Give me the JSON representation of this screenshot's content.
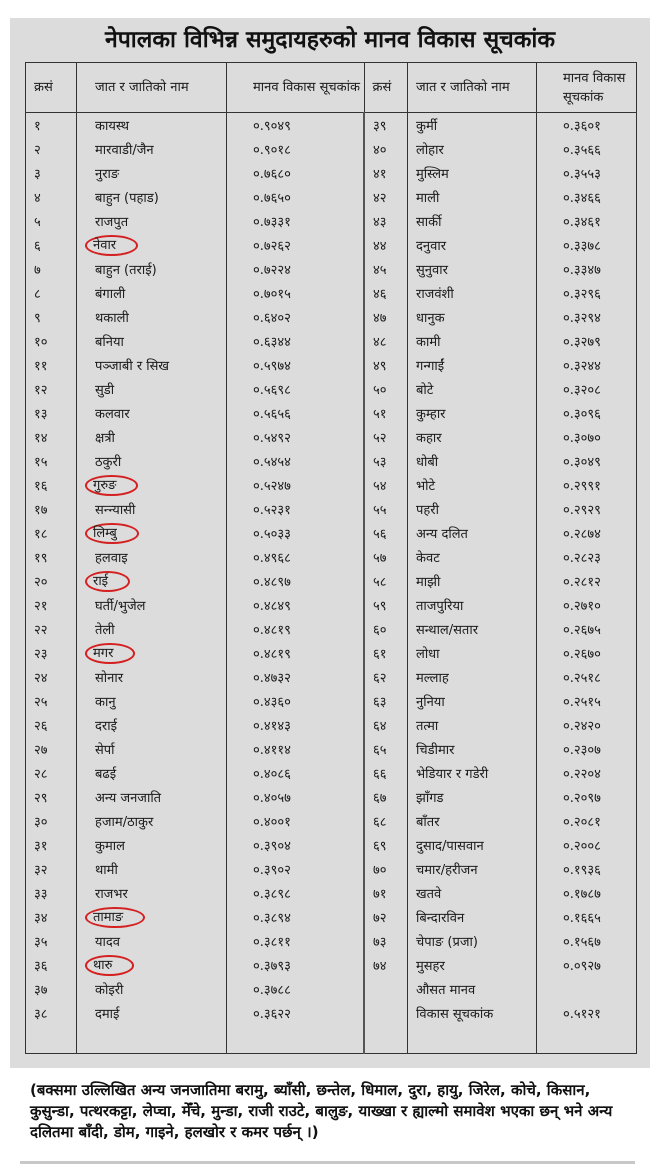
{
  "title": "नेपालका विभिन्न समुदायहरुको मानव विकास सूचकांक",
  "headers": {
    "sn": "क्रसं",
    "name": "जात र जातिको नाम",
    "hdi": "मानव विकास सूचकांक"
  },
  "highlight_color": "#d42020",
  "left_rows": [
    {
      "sn": "१",
      "name": "कायस्थ",
      "hdi": "०.९०४९"
    },
    {
      "sn": "२",
      "name": "मारवाडी/जैन",
      "hdi": "०.९०१८"
    },
    {
      "sn": "३",
      "name": "नुराङ",
      "hdi": "०.७६८०"
    },
    {
      "sn": "४",
      "name": "बाहुन (पहाड)",
      "hdi": "०.७६५०"
    },
    {
      "sn": "५",
      "name": "राजपुत",
      "hdi": "०.७३३१"
    },
    {
      "sn": "६",
      "name": "नेवार",
      "hdi": "०.७२६२",
      "circled": true
    },
    {
      "sn": "७",
      "name": "बाहुन (तराई)",
      "hdi": "०.७२२४"
    },
    {
      "sn": "८",
      "name": "बंगाली",
      "hdi": "०.७०१५"
    },
    {
      "sn": "९",
      "name": "थकाली",
      "hdi": "०.६४०२"
    },
    {
      "sn": "१०",
      "name": "बनिया",
      "hdi": "०.६३४४"
    },
    {
      "sn": "११",
      "name": "पञ्जाबी र सिख",
      "hdi": "०.५९७४"
    },
    {
      "sn": "१२",
      "name": "सुडी",
      "hdi": "०.५६९८"
    },
    {
      "sn": "१३",
      "name": "कलवार",
      "hdi": "०.५६५६"
    },
    {
      "sn": "१४",
      "name": "क्षत्री",
      "hdi": "०.५४९२"
    },
    {
      "sn": "१५",
      "name": "ठकुरी",
      "hdi": "०.५४५४"
    },
    {
      "sn": "१६",
      "name": "गुरुङ",
      "hdi": "०.५२४७",
      "circled": true
    },
    {
      "sn": "१७",
      "name": "सन्न्यासी",
      "hdi": "०.५२३१"
    },
    {
      "sn": "१८",
      "name": "लिम्बु",
      "hdi": "०.५०३३",
      "circled": true
    },
    {
      "sn": "१९",
      "name": "हलवाइ",
      "hdi": "०.४९६८"
    },
    {
      "sn": "२०",
      "name": "राई",
      "hdi": "०.४८९७",
      "circled": true
    },
    {
      "sn": "२१",
      "name": "घर्ती/भुजेल",
      "hdi": "०.४८४९"
    },
    {
      "sn": "२२",
      "name": "तेली",
      "hdi": "०.४८१९"
    },
    {
      "sn": "२३",
      "name": "मगर",
      "hdi": "०.४८१९",
      "circled": true
    },
    {
      "sn": "२४",
      "name": "सोनार",
      "hdi": "०.४७३२"
    },
    {
      "sn": "२५",
      "name": "कानु",
      "hdi": "०.४३६०"
    },
    {
      "sn": "२६",
      "name": "दराई",
      "hdi": "०.४१४३"
    },
    {
      "sn": "२७",
      "name": "सेर्पा",
      "hdi": "०.४११४"
    },
    {
      "sn": "२८",
      "name": "बढई",
      "hdi": "०.४०८६"
    },
    {
      "sn": "२९",
      "name": "अन्य जनजाति",
      "hdi": "०.४०५७"
    },
    {
      "sn": "३०",
      "name": "हजाम/ठाकुर",
      "hdi": "०.४००१"
    },
    {
      "sn": "३१",
      "name": "कुमाल",
      "hdi": "०.३९०४"
    },
    {
      "sn": "३२",
      "name": "थामी",
      "hdi": "०.३९०२"
    },
    {
      "sn": "३३",
      "name": "राजभर",
      "hdi": "०.३८९८"
    },
    {
      "sn": "३४",
      "name": "तामाङ",
      "hdi": "०.३८९४",
      "circled": true
    },
    {
      "sn": "३५",
      "name": "यादव",
      "hdi": "०.३८११"
    },
    {
      "sn": "३६",
      "name": "थारु",
      "hdi": "०.३७९३",
      "circled": true
    },
    {
      "sn": "३७",
      "name": "कोइरी",
      "hdi": "०.३७८८"
    },
    {
      "sn": "३८",
      "name": "दमाई",
      "hdi": "०.३६२२"
    }
  ],
  "right_rows": [
    {
      "sn": "३९",
      "name": "कुर्मी",
      "hdi": "०.३६०१"
    },
    {
      "sn": "४०",
      "name": "लोहार",
      "hdi": "०.३५६६"
    },
    {
      "sn": "४१",
      "name": "मुस्लिम",
      "hdi": "०.३५५३"
    },
    {
      "sn": "४२",
      "name": "माली",
      "hdi": "०.३४६६"
    },
    {
      "sn": "४३",
      "name": "सार्की",
      "hdi": "०.३४६१"
    },
    {
      "sn": "४४",
      "name": "दनुवार",
      "hdi": "०.३३७८"
    },
    {
      "sn": "४५",
      "name": "सुनुवार",
      "hdi": "०.३३४७"
    },
    {
      "sn": "४६",
      "name": "राजवंशी",
      "hdi": "०.३२९६"
    },
    {
      "sn": "४७",
      "name": "धानुक",
      "hdi": "०.३२९४"
    },
    {
      "sn": "४८",
      "name": "कामी",
      "hdi": "०.३२७९"
    },
    {
      "sn": "४९",
      "name": "गन्गाईं",
      "hdi": "०.३२४४"
    },
    {
      "sn": "५०",
      "name": "बोटे",
      "hdi": "०.३२०८"
    },
    {
      "sn": "५१",
      "name": "कुम्हार",
      "hdi": "०.३०९६"
    },
    {
      "sn": "५२",
      "name": "कहार",
      "hdi": "०.३०७०"
    },
    {
      "sn": "५३",
      "name": "धोबी",
      "hdi": "०.३०४९"
    },
    {
      "sn": "५४",
      "name": "भोटे",
      "hdi": "०.२९९१"
    },
    {
      "sn": "५५",
      "name": "पहरी",
      "hdi": "०.२९२९"
    },
    {
      "sn": "५६",
      "name": "अन्य दलित",
      "hdi": "०.२८७४"
    },
    {
      "sn": "५७",
      "name": "केवट",
      "hdi": "०.२८२३"
    },
    {
      "sn": "५८",
      "name": "माझी",
      "hdi": "०.२८१२"
    },
    {
      "sn": "५९",
      "name": "ताजपुरिया",
      "hdi": "०.२७१०"
    },
    {
      "sn": "६०",
      "name": "सन्थाल/सतार",
      "hdi": "०.२६७५"
    },
    {
      "sn": "६१",
      "name": "लोधा",
      "hdi": "०.२६७०"
    },
    {
      "sn": "६२",
      "name": "मल्लाह",
      "hdi": "०.२५१८"
    },
    {
      "sn": "६३",
      "name": "नुनिया",
      "hdi": "०.२५१५"
    },
    {
      "sn": "६४",
      "name": "तत्मा",
      "hdi": "०.२४२०"
    },
    {
      "sn": "६५",
      "name": "चिडीमार",
      "hdi": "०.२३०७"
    },
    {
      "sn": "६६",
      "name": "भेडियार र गडेरी",
      "hdi": "०.२२०४"
    },
    {
      "sn": "६७",
      "name": "झाँगड",
      "hdi": "०.२०९७"
    },
    {
      "sn": "६८",
      "name": "बाँतर",
      "hdi": "०.२०८१"
    },
    {
      "sn": "६९",
      "name": "दुसाद/पासवान",
      "hdi": "०.२००८"
    },
    {
      "sn": "७०",
      "name": "चमार/हरीजन",
      "hdi": "०.१९३६"
    },
    {
      "sn": "७१",
      "name": "खतवे",
      "hdi": "०.१७८७"
    },
    {
      "sn": "७२",
      "name": "बिन्दारविन",
      "hdi": "०.१६६५"
    },
    {
      "sn": "७३",
      "name": "चेपाङ (प्रजा)",
      "hdi": "०.१५६७"
    },
    {
      "sn": "७४",
      "name": "मुसहर",
      "hdi": "०.०९२७"
    },
    {
      "sn": "",
      "name": "औसत मानव",
      "hdi": ""
    },
    {
      "sn": "",
      "name": "विकास सूचकांक",
      "hdi": "०.५१२१"
    }
  ],
  "footnote": "(बक्समा उल्लिखित अन्य जनजातिमा बरामु, ब्याँसी, छन्तेल, धिमाल, दुरा, हायु, जिरेल, कोचे, किसान, कुसुन्डा, पत्थरकट्टा, लेप्चा, मेँचे, मुन्डा, राजी राउटे, बालुङ, याख्खा र ह्याल्मो समावेश भएका छन् भने अन्य दलितमा बाँदी, डोम, गाइने, हलखोर र कमर पर्छन् ।)"
}
